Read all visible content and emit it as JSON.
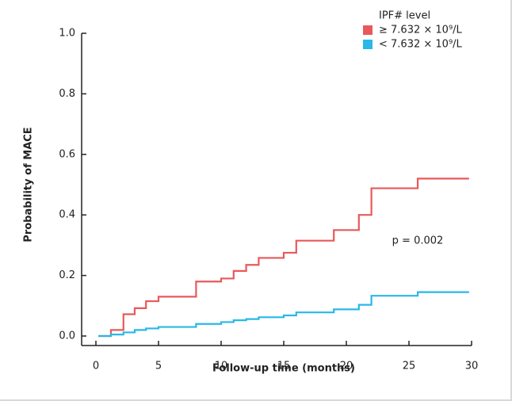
{
  "chart_data": {
    "type": "step",
    "x_label": "Follow-up time (months)",
    "y_label": "Probability of MACE",
    "legend_title": "IPF# level",
    "annotation": "p = 0.002",
    "x": [
      0.2,
      1.2,
      2.2,
      3.1,
      4,
      5,
      8,
      10,
      11,
      12,
      13,
      15,
      16,
      19,
      21,
      22,
      25.7,
      29.8
    ],
    "series": [
      {
        "name": "≥ 7.632 × 10⁹/L",
        "color": "#e8595b",
        "values": [
          0,
          0.02,
          0.072,
          0.092,
          0.115,
          0.13,
          0.18,
          0.19,
          0.215,
          0.235,
          0.258,
          0.275,
          0.315,
          0.35,
          0.4,
          0.488,
          0.52,
          0.52
        ]
      },
      {
        "name": "< 7.632 × 10⁹/L",
        "color": "#29b8e8",
        "values": [
          0,
          0.005,
          0.012,
          0.02,
          0.025,
          0.03,
          0.04,
          0.046,
          0.052,
          0.056,
          0.062,
          0.068,
          0.078,
          0.088,
          0.103,
          0.133,
          0.145,
          0.145
        ]
      }
    ],
    "xlim": [
      0,
      30
    ],
    "xticks": [
      0,
      5,
      10,
      15,
      20,
      25,
      30
    ],
    "ylim": [
      0,
      1
    ],
    "yticks": [
      {
        "value": 0,
        "label": "0.0"
      },
      {
        "value": 0.2,
        "label": "0.2"
      },
      {
        "value": 0.4,
        "label": "0.4"
      },
      {
        "value": 0.6,
        "label": "0.6"
      },
      {
        "value": 0.8,
        "label": "0.8"
      },
      {
        "value": 1,
        "label": "1.0"
      }
    ]
  }
}
